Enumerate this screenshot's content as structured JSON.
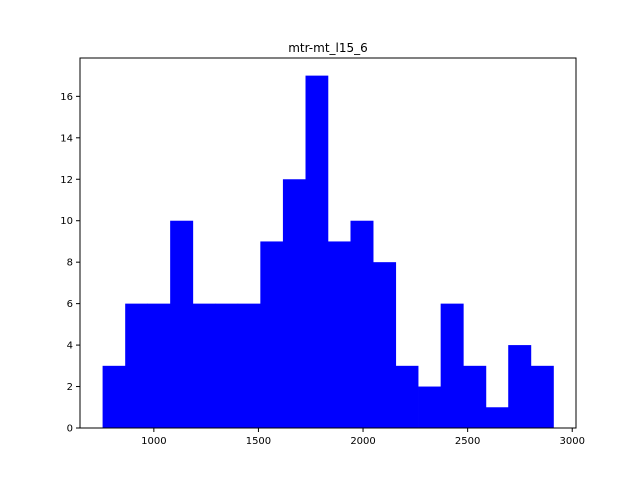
{
  "chart_data": {
    "type": "bar",
    "title": "mtr-mt_l15_6",
    "xlabel": "",
    "ylabel": "",
    "bin_edges": [
      755,
      863,
      970,
      1078,
      1186,
      1294,
      1401,
      1509,
      1617,
      1725,
      1832,
      1940,
      2048,
      2156,
      2263,
      2371,
      2479,
      2587,
      2694,
      2802,
      2910
    ],
    "values": [
      3,
      6,
      6,
      10,
      6,
      6,
      6,
      9,
      12,
      17,
      9,
      10,
      8,
      3,
      2,
      6,
      3,
      1,
      4,
      3
    ],
    "xlim": [
      647,
      3018
    ],
    "ylim": [
      0,
      17.85
    ],
    "x_ticks": [
      1000,
      1500,
      2000,
      2500,
      3000
    ],
    "x_tick_labels": [
      "1000",
      "1500",
      "2000",
      "2500",
      "3000"
    ],
    "y_ticks": [
      0,
      2,
      4,
      6,
      8,
      10,
      12,
      14,
      16
    ],
    "y_tick_labels": [
      "0",
      "2",
      "4",
      "6",
      "8",
      "10",
      "12",
      "14",
      "16"
    ],
    "bar_color": "#0000ff",
    "grid": false
  }
}
